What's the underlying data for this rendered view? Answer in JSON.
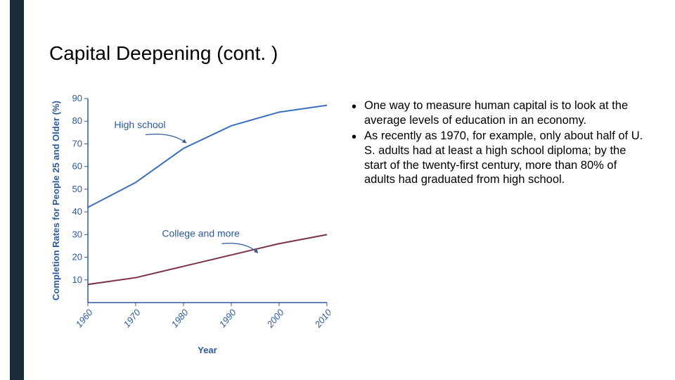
{
  "slide": {
    "title": "Capital Deepening (cont. )"
  },
  "accent": {
    "color": "#1b2c3a"
  },
  "bullets": [
    "One way to measure human capital is to look at the average levels of education in an economy.",
    "As recently as 1970, for example, only about half of U. S. adults had at least a high school diploma; by the start of the twenty-first century, more than 80% of adults had graduated from high school."
  ],
  "chart": {
    "type": "line",
    "x_label": "Year",
    "y_label": "Completion Rates for People 25 and Older (%)",
    "x_categories": [
      "1960",
      "1970",
      "1980",
      "1990",
      "2000",
      "2010"
    ],
    "x_index_domain": [
      0,
      5
    ],
    "ylim": [
      0,
      90
    ],
    "ytick_step": 10,
    "series": [
      {
        "name": "High school",
        "label": "High school",
        "color": "#3a6ebf",
        "line_width": 2,
        "pointer_from": [
          1.2,
          74
        ],
        "pointer_to": [
          2.05,
          70.5
        ],
        "label_pos_index": 0.55,
        "label_pos_y": 77,
        "points": [
          [
            0,
            42
          ],
          [
            1,
            53
          ],
          [
            2,
            68
          ],
          [
            3,
            78
          ],
          [
            4,
            84
          ],
          [
            5,
            87
          ]
        ]
      },
      {
        "name": "College and more",
        "label": "College and more",
        "color": "#7a2f4a",
        "line_width": 2,
        "pointer_from": [
          2.8,
          26
        ],
        "pointer_to": [
          3.55,
          22
        ],
        "label_pos_index": 1.55,
        "label_pos_y": 29,
        "points": [
          [
            0,
            8
          ],
          [
            1,
            11
          ],
          [
            2,
            16
          ],
          [
            3,
            21
          ],
          [
            4,
            26
          ],
          [
            5,
            30
          ]
        ]
      }
    ],
    "axis_color": "#2b5aa0",
    "axis_label_color": "#2b5aa0",
    "tick_font_size": 13,
    "axis_label_font_size": 13,
    "data_label_font_size": 14,
    "plot_background": "#ffffff",
    "axis_line_width": 1.5,
    "tick_label_rotation_deg": -50
  }
}
